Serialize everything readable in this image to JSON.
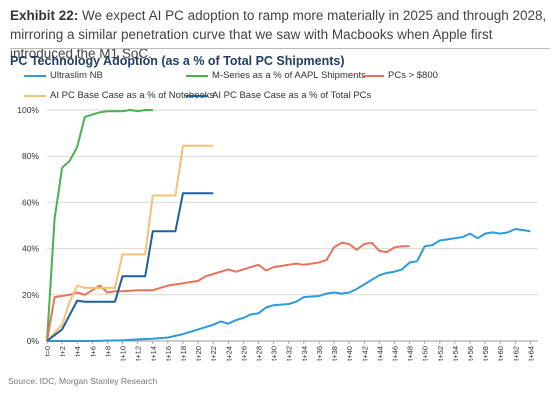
{
  "header": {
    "exhibit_label": "Exhibit 22:",
    "exhibit_text": "We expect AI PC adoption to ramp more materially in 2025 and through 2028, mirroring a similar penetration curve that we saw with Macbooks when Apple first introduced the M1 SoC."
  },
  "footer": {
    "source": "Source: IDC, Morgan Stanley Research"
  },
  "chart_data": {
    "type": "line",
    "title": "PC Technology Adoption (as a % of Total PC Shipments)",
    "xlabel": "",
    "ylabel": "",
    "ylim": [
      0,
      100
    ],
    "y_ticks": [
      "0%",
      "20%",
      "40%",
      "60%",
      "80%",
      "100%"
    ],
    "x_ticks": [
      "t=0",
      "t+2",
      "t+4",
      "t+6",
      "t+8",
      "t+10",
      "t+12",
      "t+14",
      "t+16",
      "t+18",
      "t+20",
      "t+22",
      "t+24",
      "t+26",
      "t+28",
      "t+30",
      "t+32",
      "t+34",
      "t+36",
      "t+38",
      "t+40",
      "t+42",
      "t+44",
      "t+46",
      "t+48",
      "t+50",
      "t+52",
      "t+54",
      "t+56",
      "t+58",
      "t+60",
      "t+62",
      "t+64"
    ],
    "grid": true,
    "legend": "top",
    "series": [
      {
        "name": "Ultraslim NB",
        "color": "#2e9bd6",
        "values": [
          [
            0,
            0
          ],
          [
            6,
            0
          ],
          [
            10,
            0.3
          ],
          [
            12,
            0.7
          ],
          [
            14,
            1
          ],
          [
            16,
            1.5
          ],
          [
            18,
            3
          ],
          [
            20,
            5
          ],
          [
            22,
            7
          ],
          [
            23,
            8.5
          ],
          [
            24,
            7.5
          ],
          [
            25,
            9
          ],
          [
            26,
            10
          ],
          [
            27,
            11.5
          ],
          [
            28,
            12
          ],
          [
            29,
            14.5
          ],
          [
            30,
            15.5
          ],
          [
            32,
            16
          ],
          [
            33,
            17
          ],
          [
            34,
            19
          ],
          [
            36,
            19.5
          ],
          [
            37,
            20.5
          ],
          [
            38,
            21
          ],
          [
            39,
            20.5
          ],
          [
            40,
            21
          ],
          [
            41,
            22.5
          ],
          [
            42,
            24.5
          ],
          [
            43,
            26.5
          ],
          [
            44,
            28.5
          ],
          [
            45,
            29.5
          ],
          [
            46,
            30
          ],
          [
            47,
            31
          ],
          [
            48,
            34
          ],
          [
            49,
            34.5
          ],
          [
            50,
            41
          ],
          [
            51,
            41.5
          ],
          [
            52,
            43.5
          ],
          [
            53,
            44
          ],
          [
            54,
            44.5
          ],
          [
            55,
            45
          ],
          [
            56,
            46.5
          ],
          [
            57,
            44.5
          ],
          [
            58,
            46.5
          ],
          [
            59,
            47
          ],
          [
            60,
            46.5
          ],
          [
            61,
            47
          ],
          [
            62,
            48.5
          ],
          [
            63,
            48
          ],
          [
            64,
            47.5
          ]
        ]
      },
      {
        "name": "M-Series as a % of AAPL Shipments",
        "color": "#4caf50",
        "values": [
          [
            0,
            0
          ],
          [
            1,
            53
          ],
          [
            2,
            75
          ],
          [
            3,
            78
          ],
          [
            4,
            84
          ],
          [
            5,
            97
          ],
          [
            6,
            98
          ],
          [
            7,
            99
          ],
          [
            8,
            99.5
          ],
          [
            9,
            99.5
          ],
          [
            10,
            99.5
          ],
          [
            11,
            100
          ],
          [
            12,
            99.5
          ],
          [
            13,
            100
          ],
          [
            14,
            100
          ]
        ]
      },
      {
        "name": "PCs > $800",
        "color": "#e8735a",
        "values": [
          [
            0,
            0
          ],
          [
            1,
            19
          ],
          [
            3,
            20
          ],
          [
            4,
            21
          ],
          [
            5,
            20
          ],
          [
            6,
            22
          ],
          [
            7,
            24
          ],
          [
            8,
            21
          ],
          [
            9,
            21.5
          ],
          [
            10,
            21.5
          ],
          [
            12,
            22
          ],
          [
            14,
            22
          ],
          [
            16,
            24
          ],
          [
            18,
            25
          ],
          [
            20,
            26
          ],
          [
            21,
            28
          ],
          [
            22,
            29
          ],
          [
            24,
            31
          ],
          [
            25,
            30
          ],
          [
            26,
            31
          ],
          [
            27,
            32
          ],
          [
            28,
            33
          ],
          [
            29,
            30.5
          ],
          [
            30,
            32
          ],
          [
            32,
            33
          ],
          [
            33,
            33.5
          ],
          [
            34,
            33
          ],
          [
            35,
            33.5
          ],
          [
            36,
            34
          ],
          [
            37,
            35
          ],
          [
            38,
            40.5
          ],
          [
            39,
            42.5
          ],
          [
            40,
            42
          ],
          [
            41,
            39.5
          ],
          [
            42,
            42
          ],
          [
            43,
            42.5
          ],
          [
            44,
            39
          ],
          [
            45,
            38.5
          ],
          [
            46,
            40.5
          ],
          [
            47,
            41
          ],
          [
            48,
            41
          ]
        ]
      },
      {
        "name": "AI PC Base Case as a % of Notebooks",
        "color": "#f2c276",
        "values": [
          [
            0,
            0
          ],
          [
            2,
            7
          ],
          [
            3,
            17
          ],
          [
            4,
            24
          ],
          [
            5,
            23
          ],
          [
            6,
            23
          ],
          [
            8,
            23
          ],
          [
            9,
            23
          ],
          [
            10,
            37.5
          ],
          [
            13,
            37.5
          ],
          [
            14,
            63
          ],
          [
            17,
            63
          ],
          [
            18,
            84.5
          ],
          [
            22,
            84.5
          ]
        ]
      },
      {
        "name": "AI PC Base Case as a % of Total PCs",
        "color": "#1f5fa0",
        "values": [
          [
            0,
            0
          ],
          [
            2,
            5
          ],
          [
            4,
            17.5
          ],
          [
            5,
            17
          ],
          [
            6,
            17
          ],
          [
            9,
            17
          ],
          [
            10,
            28
          ],
          [
            13,
            28
          ],
          [
            14,
            47.5
          ],
          [
            17,
            47.5
          ],
          [
            18,
            64
          ],
          [
            22,
            64
          ]
        ]
      }
    ]
  }
}
